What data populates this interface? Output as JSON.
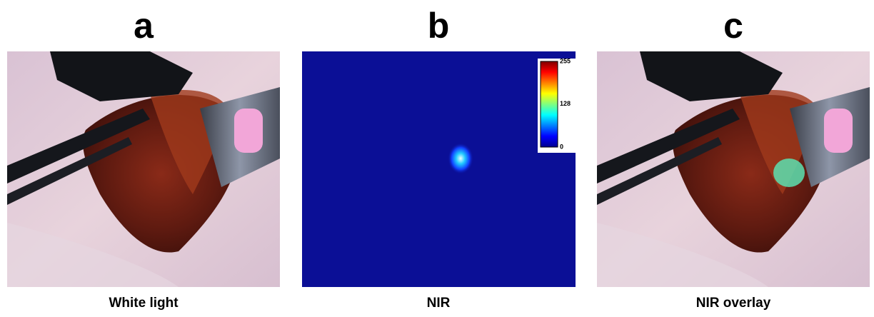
{
  "panels": [
    {
      "letter": "a",
      "caption": "White light"
    },
    {
      "letter": "b",
      "caption": "NIR"
    },
    {
      "letter": "c",
      "caption": "NIR overlay"
    }
  ],
  "colorbar": {
    "ticks": [
      255,
      128,
      0
    ]
  }
}
